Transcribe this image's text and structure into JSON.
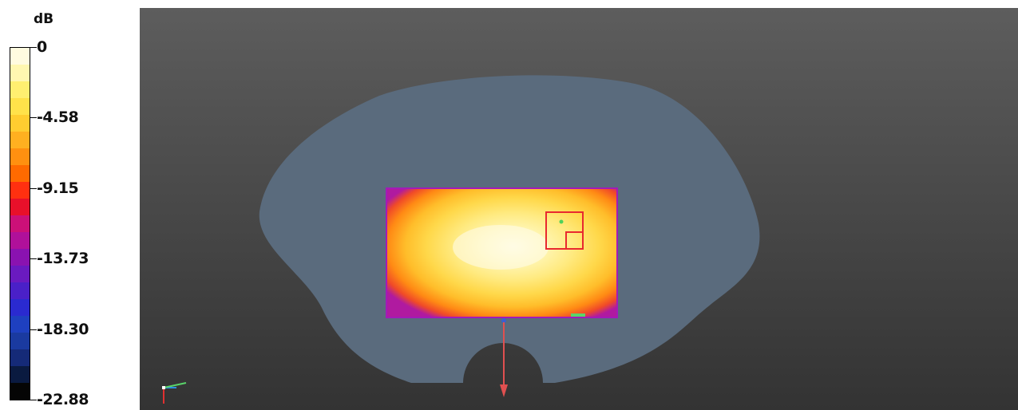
{
  "legend": {
    "unit": "dB",
    "ticks": [
      "0",
      "-4.58",
      "-9.15",
      "-13.73",
      "-18.30",
      "-22.88"
    ],
    "colors": [
      "#fffbe0",
      "#fff7b0",
      "#ffef70",
      "#ffe24a",
      "#ffcd30",
      "#ffb020",
      "#ff9010",
      "#ff6a00",
      "#ff3010",
      "#e8102a",
      "#cc1078",
      "#b0109a",
      "#8a12b0",
      "#6a1ac0",
      "#4a20c8",
      "#2a2ad0",
      "#1e40c0",
      "#1a3aa0",
      "#152a78",
      "#0a1a40",
      "#050505"
    ]
  },
  "viewport": {
    "colors": {
      "background_top": "#5d5d5d",
      "background_bottom": "#333333",
      "phantom": "#5a6b7d",
      "eval_box": "#e8292f"
    },
    "icons": [
      "axis-triad-icon",
      "probe-arrow-icon"
    ]
  }
}
